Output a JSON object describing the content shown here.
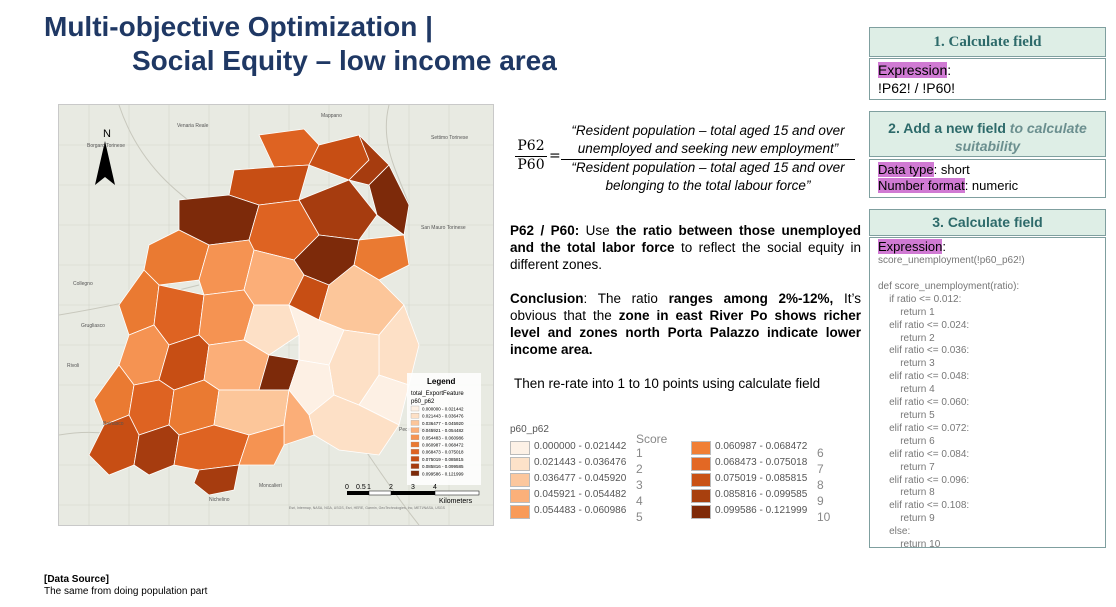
{
  "title": {
    "line1": "Multi-objective Optimization |",
    "line2": "Social Equity – low income area"
  },
  "map": {
    "north_label": "N",
    "legend_title": "Legend",
    "legend_layer": "total_ExportFeature",
    "legend_field": "p60_p62",
    "legend_ranges": [
      "0.000000 - 0.021442",
      "0.021443 - 0.036476",
      "0.036477 - 0.045920",
      "0.045921 - 0.054482",
      "0.054483 - 0.060986",
      "0.060987 - 0.068472",
      "0.068473 - 0.075018",
      "0.075019 - 0.085815",
      "0.085816 - 0.099585",
      "0.099586 - 0.121999"
    ],
    "place_labels": [
      "Venaria Reale",
      "Borgaro Torinese",
      "Mappano",
      "Settimo Torinese",
      "San Mauro Torinese",
      "Collegno",
      "Grugliasco",
      "Pecetto Torinese",
      "Beinasco",
      "Moncalieri",
      "Nichelino",
      "Rivoli"
    ],
    "scale_ticks": [
      "0",
      "0.5",
      "1",
      "2",
      "3",
      "4"
    ],
    "scale_unit": "Kilometers",
    "attribution": "Esri, Intermap, NASA, NGA, USGS, Esri, HERE, Garmin, GeoTechnologies, Inc, METI/NASA, USGS",
    "colors": [
      "#fdf0e4",
      "#fde0c6",
      "#fcc69a",
      "#fbae78",
      "#f59352",
      "#ea7a32",
      "#de6322",
      "#c74e14",
      "#a63c0f",
      "#7d2a0a"
    ]
  },
  "formula": {
    "numerator": "P62",
    "denominator": "P60",
    "equals": "=",
    "quote_top": "“Resident population – total aged 15 and over unemployed and seeking new employment”",
    "quote_bottom": "“Resident population – total aged 15 and over belonging to the total labour force”"
  },
  "para1": {
    "lead": "P62 / P60:",
    "t1": " Use ",
    "b1": "the ratio between those unemployed and the total labor force",
    "t2": " to reflect the social equity in different zones."
  },
  "para2": {
    "lead": "Conclusion",
    "t1": ": The ratio ",
    "b1": "ranges among 2%-12%,",
    "t2": " It’s obvious that the ",
    "b2": "zone in east River Po shows richer level and zones north Porta Palazzo indicate lower income area."
  },
  "para3": "Then re-rate into 1 to 10 points using calculate field",
  "legend": {
    "title": "p60_p62",
    "score_header": "Score",
    "left": [
      {
        "range": "0.000000 - 0.021442",
        "score": "1",
        "color": "#fdf1e6"
      },
      {
        "range": "0.021443 - 0.036476",
        "score": "2",
        "color": "#fde2c9"
      },
      {
        "range": "0.036477 - 0.045920",
        "score": "3",
        "color": "#fcc79d"
      },
      {
        "range": "0.045921 - 0.054482",
        "score": "4",
        "color": "#fbb07a"
      },
      {
        "range": "0.054483 - 0.060986",
        "score": "5",
        "color": "#f89a58"
      }
    ],
    "right": [
      {
        "range": "0.060987 - 0.068472",
        "score": "6",
        "color": "#f07f35"
      },
      {
        "range": "0.068473 - 0.075018",
        "score": "7",
        "color": "#e36824"
      },
      {
        "range": "0.075019 - 0.085815",
        "score": "8",
        "color": "#c95215"
      },
      {
        "range": "0.085816 - 0.099585",
        "score": "9",
        "color": "#a8400e"
      },
      {
        "range": "0.099586 - 0.121999",
        "score": "10",
        "color": "#7f2a08"
      }
    ]
  },
  "steps": {
    "s1_title": "1. Calculate field",
    "s1_label": "Expression",
    "s1_colon": ":",
    "s1_value": "!P62! / !P60!",
    "s2_title_bold": "2. Add a new field",
    "s2_title_italic": " to calculate suitability",
    "s2_type_label": "Data type",
    "s2_type_value": ": short",
    "s2_fmt_label": "Number format",
    "s2_fmt_value": ": numeric",
    "s3_title": "3. Calculate field",
    "s3_label": "Expression",
    "s3_colon": ":",
    "s3_call": "score_unemployment(!p60_p62!)",
    "s3_code": "def score_unemployment(ratio):\n    if ratio <= 0.012:\n        return 1\n    elif ratio <= 0.024:\n        return 2\n    elif ratio <= 0.036:\n        return 3\n    elif ratio <= 0.048:\n        return 4\n    elif ratio <= 0.060:\n        return 5\n    elif ratio <= 0.072:\n        return 6\n    elif ratio <= 0.084:\n        return 7\n    elif ratio <= 0.096:\n        return 8\n    elif ratio <= 0.108:\n        return 9\n    else:\n        return 10"
  },
  "source": {
    "label": "[Data Source]",
    "text": "The same from doing population part"
  }
}
